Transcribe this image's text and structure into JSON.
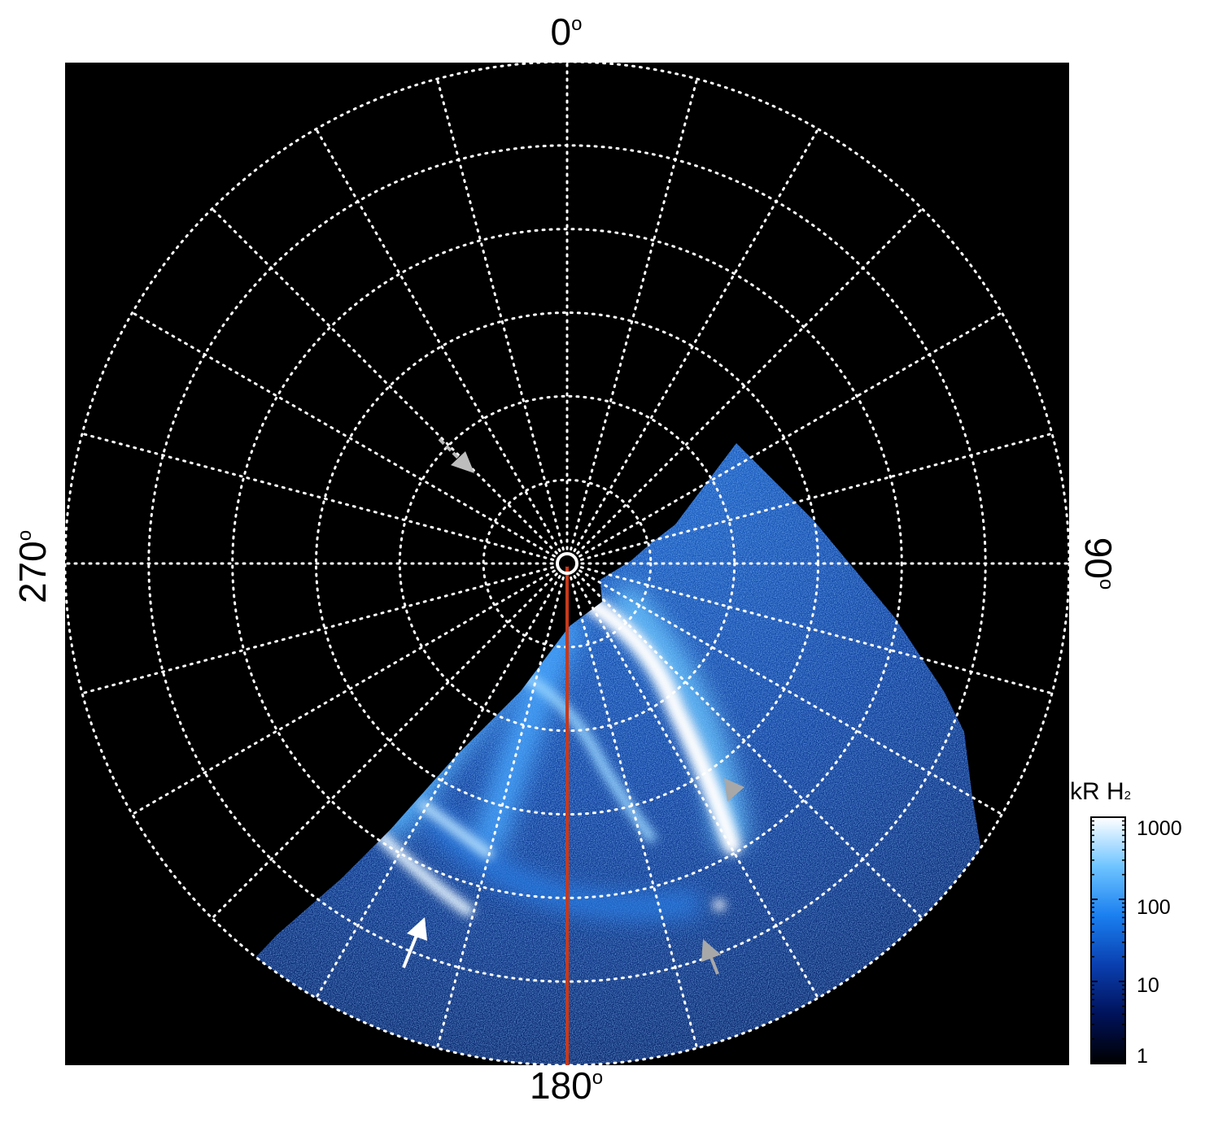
{
  "plot": {
    "background_color": "#000000",
    "grid_color": "#ffffff",
    "meridian_line_color": "#c8391a",
    "latitude_rings": 6,
    "longitude_spokes": 24
  },
  "labels": {
    "top": "0",
    "right": "90",
    "bottom": "180",
    "left": "270",
    "degree": "o"
  },
  "colorbar": {
    "title": "kR H",
    "title_subscript": "2",
    "ticks": [
      "1000",
      "100",
      "10",
      "1"
    ],
    "gradient": [
      "#000000",
      "#00125a",
      "#0a3fb0",
      "#1a7ff0",
      "#6ec4ff",
      "#ffffff"
    ]
  },
  "annotations": {
    "white_arrow_color": "#ffffff",
    "gray_arrow_color": "#a8a8a8"
  }
}
